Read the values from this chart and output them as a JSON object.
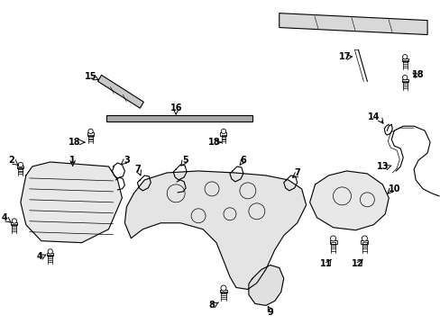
{
  "bg_color": "#ffffff",
  "line_color": "#000000",
  "figsize": [
    4.89,
    3.6
  ],
  "dpi": 100,
  "lw_med": 0.8,
  "lw_thin": 0.5,
  "lw_thick": 1.2
}
